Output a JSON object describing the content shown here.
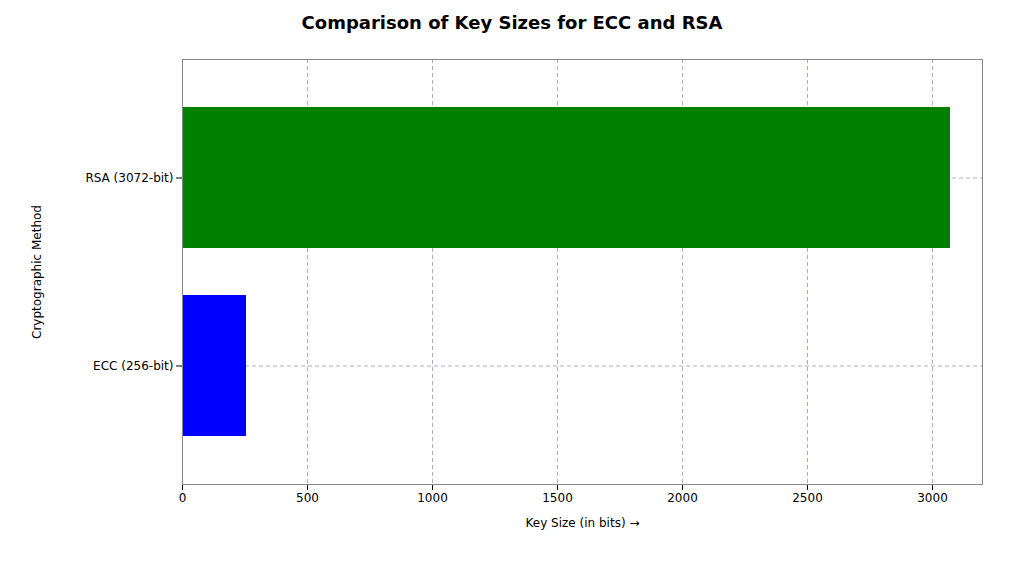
{
  "chart_data": {
    "type": "bar",
    "title": "Comparison of Key Sizes for ECC and RSA",
    "orientation": "horizontal",
    "categories": [
      "ECC (256-bit)",
      "RSA (3072-bit)"
    ],
    "values": [
      256,
      3072
    ],
    "colors": [
      "#0000ff",
      "#008000"
    ],
    "xlabel": "Key Size (in bits)",
    "ylabel": "Cryptographic Method",
    "xlim": [
      0,
      3200
    ],
    "xticks": [
      0,
      500,
      1000,
      1500,
      2000,
      2500,
      3000
    ],
    "grid": true
  }
}
